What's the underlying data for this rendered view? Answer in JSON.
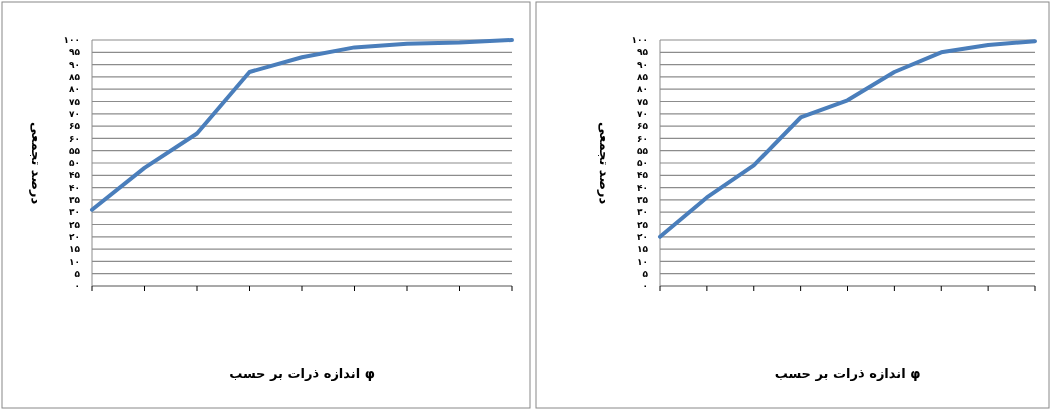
{
  "chart_data": [
    {
      "type": "line",
      "xlabel": "اندازه ذرات بر حسب φ",
      "ylabel": "درصد تجمعی",
      "categories": [
        null,
        null,
        null,
        null,
        null,
        null,
        null,
        null,
        null
      ],
      "series": [
        {
          "color": "#4a7ebb",
          "values": [
            31,
            48,
            62,
            87,
            93,
            97,
            98.5,
            99,
            100
          ]
        }
      ],
      "ylim": [
        0,
        100
      ],
      "yticks": [
        {
          "value": 0,
          "label": "۰"
        },
        {
          "value": 5,
          "label": "۵"
        },
        {
          "value": 10,
          "label": "۱۰"
        },
        {
          "value": 15,
          "label": "۱۵"
        },
        {
          "value": 20,
          "label": "۲۰"
        },
        {
          "value": 25,
          "label": "۲۵"
        },
        {
          "value": 30,
          "label": "۳۰"
        },
        {
          "value": 35,
          "label": "۳۵"
        },
        {
          "value": 40,
          "label": "۴۰"
        },
        {
          "value": 45,
          "label": "۴۵"
        },
        {
          "value": 50,
          "label": "۵۰"
        },
        {
          "value": 55,
          "label": "۵۵"
        },
        {
          "value": 60,
          "label": "۶۰"
        },
        {
          "value": 65,
          "label": "۶۵"
        },
        {
          "value": 70,
          "label": "۷۰"
        },
        {
          "value": 75,
          "label": "۷۵"
        },
        {
          "value": 80,
          "label": "۸۰"
        },
        {
          "value": 85,
          "label": "۸۵"
        },
        {
          "value": 90,
          "label": "۹۰"
        },
        {
          "value": 95,
          "label": "۹۵"
        },
        {
          "value": 100,
          "label": "۱۰۰"
        }
      ],
      "grid": "y",
      "marker": "none",
      "line_style": "solid"
    },
    {
      "type": "line",
      "xlabel": "اندازه ذرات بر حسب φ",
      "ylabel": "درصد تجمعی",
      "categories": [
        null,
        null,
        null,
        null,
        null,
        null,
        null,
        null,
        null
      ],
      "series": [
        {
          "color": "#4a7ebb",
          "values": [
            20,
            36,
            49,
            68.5,
            75.5,
            87,
            95,
            98,
            99.5
          ]
        }
      ],
      "ylim": [
        0,
        100
      ],
      "yticks": [
        {
          "value": 0,
          "label": "۰"
        },
        {
          "value": 5,
          "label": "۵"
        },
        {
          "value": 10,
          "label": "۱۰"
        },
        {
          "value": 15,
          "label": "۱۵"
        },
        {
          "value": 20,
          "label": "۲۰"
        },
        {
          "value": 25,
          "label": "۲۵"
        },
        {
          "value": 30,
          "label": "۳۰"
        },
        {
          "value": 35,
          "label": "۳۵"
        },
        {
          "value": 40,
          "label": "۴۰"
        },
        {
          "value": 45,
          "label": "۴۵"
        },
        {
          "value": 50,
          "label": "۵۰"
        },
        {
          "value": 55,
          "label": "۵۵"
        },
        {
          "value": 60,
          "label": "۶۰"
        },
        {
          "value": 65,
          "label": "۶۵"
        },
        {
          "value": 70,
          "label": "۷۰"
        },
        {
          "value": 75,
          "label": "۷۵"
        },
        {
          "value": 80,
          "label": "۸۰"
        },
        {
          "value": 85,
          "label": "۸۵"
        },
        {
          "value": 90,
          "label": "۹۰"
        },
        {
          "value": 95,
          "label": "۹۵"
        },
        {
          "value": 100,
          "label": "۱۰۰"
        }
      ],
      "grid": "y",
      "marker": "none",
      "line_style": "solid"
    }
  ]
}
